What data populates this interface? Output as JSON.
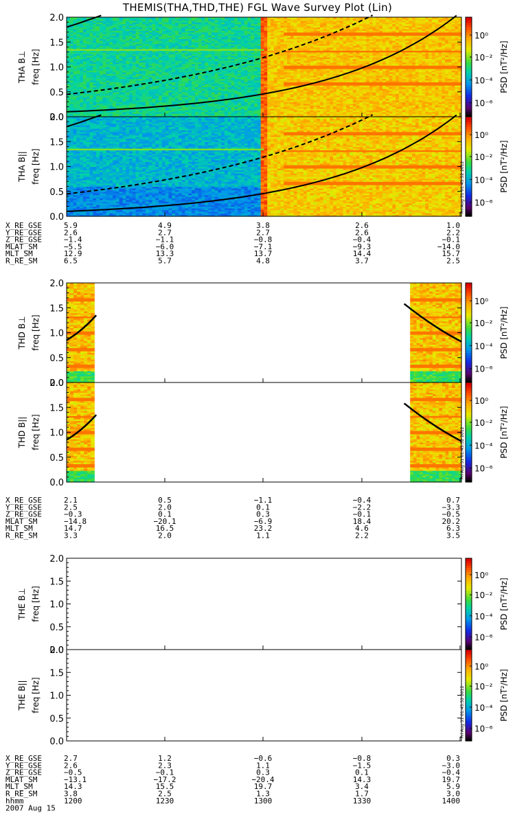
{
  "title": "THEMIS(THA,THD,THE) FGL Wave Survey Plot (Lin)",
  "colorbar": {
    "label": "PSD [nT²/Hz]",
    "ticks": [
      "10⁰",
      "10⁻²",
      "10⁻⁴",
      "10⁻⁶"
    ],
    "stamp": "Fri Aug 31 01:45:52 2012"
  },
  "time_axis": {
    "date": "2007 Aug 15",
    "hhmm_label": "hhmm",
    "ticks": [
      "1200",
      "1230",
      "1300",
      "1330",
      "1400"
    ]
  },
  "chart_data": [
    {
      "type": "heatmap",
      "probe": "THA",
      "panels": [
        {
          "name": "THA B⊥",
          "ylabel": "freq [Hz]",
          "yticks": [
            "0.0",
            "0.5",
            "1.0",
            "1.5",
            "2.0"
          ],
          "ylim": [
            0,
            2
          ],
          "data_coverage": [
            [
              0,
              1
            ]
          ],
          "background": "blue-green before ~1300, yellow-orange after; narrow red column near 1300"
        },
        {
          "name": "THA B||",
          "ylabel": "freq [Hz]",
          "yticks": [
            "0.0",
            "0.5",
            "1.0",
            "1.5",
            "2.0"
          ],
          "ylim": [
            0,
            2
          ],
          "data_coverage": [
            [
              0,
              1
            ]
          ],
          "background": "blue before ~1300, yellow-orange after"
        }
      ],
      "orbit": {
        "labels": [
          "X_RE_GSE",
          "Y_RE_GSE",
          "Z_RE_GSE",
          "MLAT_SM",
          "MLT_SM",
          "R_RE_SM"
        ],
        "values": [
          [
            "5.9",
            "4.9",
            "3.8",
            "2.6",
            "1.0"
          ],
          [
            "2.6",
            "2.7",
            "2.7",
            "2.6",
            "2.2"
          ],
          [
            "−1.4",
            "−1.1",
            "−0.8",
            "−0.4",
            "−0.1"
          ],
          [
            "−5.5",
            "−6.0",
            "−7.1",
            "−9.3",
            "−14.0"
          ],
          [
            "12.9",
            "13.3",
            "13.7",
            "14.4",
            "15.7"
          ],
          [
            "6.5",
            "5.7",
            "4.8",
            "3.7",
            "2.5"
          ]
        ]
      }
    },
    {
      "type": "heatmap",
      "probe": "THD",
      "panels": [
        {
          "name": "THD B⊥",
          "ylabel": "freq [Hz]",
          "yticks": [
            "0.0",
            "0.5",
            "1.0",
            "1.5",
            "2.0"
          ],
          "ylim": [
            0,
            2
          ],
          "data_coverage": [
            [
              0,
              0.07
            ],
            [
              0.87,
              1
            ]
          ]
        },
        {
          "name": "THD B||",
          "ylabel": "freq [Hz]",
          "yticks": [
            "0.0",
            "0.5",
            "1.0",
            "1.5",
            "2.0"
          ],
          "ylim": [
            0,
            2
          ],
          "data_coverage": [
            [
              0,
              0.07
            ],
            [
              0.87,
              1
            ]
          ]
        }
      ],
      "orbit": {
        "labels": [
          "X_RE_GSE",
          "Y_RE_GSE",
          "Z_RE_GSE",
          "MLAT_SM",
          "MLT_SM",
          "R_RE_SM"
        ],
        "values": [
          [
            "2.1",
            "0.5",
            "−1.1",
            "−0.4",
            "0.7"
          ],
          [
            "2.5",
            "2.0",
            "0.1",
            "−2.2",
            "−3.3"
          ],
          [
            "−0.3",
            "0.1",
            "0.3",
            "−0.1",
            "−0.5"
          ],
          [
            "−14.8",
            "−20.1",
            "−6.9",
            "18.4",
            "20.2"
          ],
          [
            "14.7",
            "16.5",
            "23.2",
            "4.6",
            "6.3"
          ],
          [
            "3.3",
            "2.0",
            "1.1",
            "2.2",
            "3.5"
          ]
        ]
      }
    },
    {
      "type": "heatmap",
      "probe": "THE",
      "panels": [
        {
          "name": "THE B⊥",
          "ylabel": "freq [Hz]",
          "yticks": [
            "0.0",
            "0.5",
            "1.0",
            "1.5",
            "2.0"
          ],
          "ylim": [
            0,
            2
          ],
          "data_coverage": []
        },
        {
          "name": "THE B||",
          "ylabel": "freq [Hz]",
          "yticks": [
            "0.0",
            "0.5",
            "1.0",
            "1.5",
            "2.0"
          ],
          "ylim": [
            0,
            2
          ],
          "data_coverage": []
        }
      ],
      "orbit": {
        "labels": [
          "X_RE_GSE",
          "Y_RE_GSE",
          "Z_RE_GSE",
          "MLAT_SM",
          "MLT_SM",
          "R_RE_SM"
        ],
        "values": [
          [
            "2.7",
            "1.2",
            "−0.6",
            "−0.8",
            "0.3"
          ],
          [
            "2.6",
            "2.3",
            "1.1",
            "−1.5",
            "−3.0"
          ],
          [
            "−0.5",
            "−0.1",
            "0.3",
            "0.1",
            "−0.4"
          ],
          [
            "−13.1",
            "−17.2",
            "−20.4",
            "14.3",
            "19.7"
          ],
          [
            "14.3",
            "15.5",
            "19.7",
            "3.4",
            "5.9"
          ],
          [
            "3.8",
            "2.5",
            "1.3",
            "1.7",
            "3.0"
          ]
        ]
      }
    }
  ]
}
